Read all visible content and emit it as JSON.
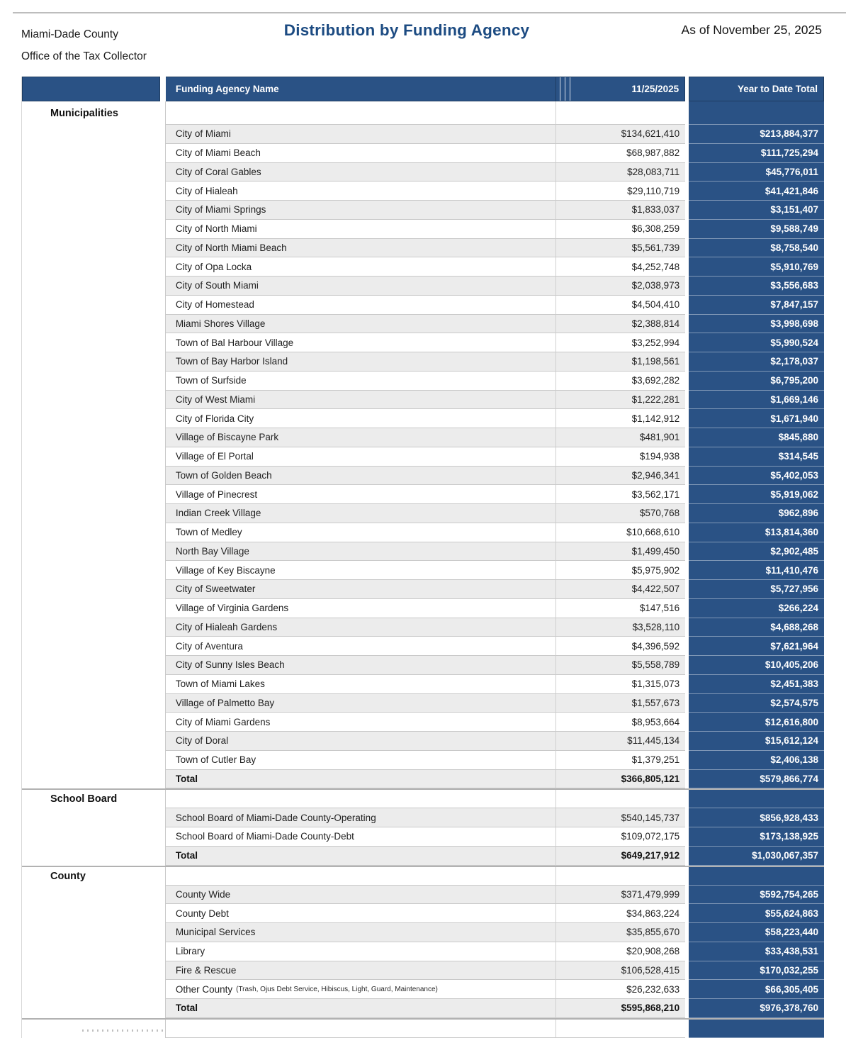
{
  "page": {
    "org_line1": "Miami-Dade County",
    "org_line2": "Office of the Tax Collector",
    "title": "Distribution by Funding Agency",
    "as_of": "As of November 25, 2025"
  },
  "colors": {
    "header_blue": "#2A5285",
    "ytd_blue": "#2A5285",
    "title_blue": "#1C4B82",
    "stripe": "#ECECEC"
  },
  "table": {
    "columns": {
      "agency": "Funding Agency Name",
      "date": "11/25/2025",
      "ytd": "Year to Date Total"
    },
    "sections": [
      {
        "label": "Municipalities",
        "rows": [
          {
            "name": "City of Miami",
            "amount": "$134,621,410",
            "ytd": "$213,884,377"
          },
          {
            "name": "City of Miami Beach",
            "amount": "$68,987,882",
            "ytd": "$111,725,294"
          },
          {
            "name": "City of Coral Gables",
            "amount": "$28,083,711",
            "ytd": "$45,776,011"
          },
          {
            "name": "City of Hialeah",
            "amount": "$29,110,719",
            "ytd": "$41,421,846"
          },
          {
            "name": "City of Miami Springs",
            "amount": "$1,833,037",
            "ytd": "$3,151,407"
          },
          {
            "name": "City of North Miami",
            "amount": "$6,308,259",
            "ytd": "$9,588,749"
          },
          {
            "name": "City of North Miami Beach",
            "amount": "$5,561,739",
            "ytd": "$8,758,540"
          },
          {
            "name": "City of Opa Locka",
            "amount": "$4,252,748",
            "ytd": "$5,910,769"
          },
          {
            "name": "City of South Miami",
            "amount": "$2,038,973",
            "ytd": "$3,556,683"
          },
          {
            "name": "City of Homestead",
            "amount": "$4,504,410",
            "ytd": "$7,847,157"
          },
          {
            "name": "Miami Shores Village",
            "amount": "$2,388,814",
            "ytd": "$3,998,698"
          },
          {
            "name": "Town of Bal Harbour Village",
            "amount": "$3,252,994",
            "ytd": "$5,990,524"
          },
          {
            "name": "Town of Bay Harbor Island",
            "amount": "$1,198,561",
            "ytd": "$2,178,037"
          },
          {
            "name": "Town of Surfside",
            "amount": "$3,692,282",
            "ytd": "$6,795,200"
          },
          {
            "name": "City of West Miami",
            "amount": "$1,222,281",
            "ytd": "$1,669,146"
          },
          {
            "name": "City of Florida City",
            "amount": "$1,142,912",
            "ytd": "$1,671,940"
          },
          {
            "name": "Village of Biscayne Park",
            "amount": "$481,901",
            "ytd": "$845,880"
          },
          {
            "name": "Village of El Portal",
            "amount": "$194,938",
            "ytd": "$314,545"
          },
          {
            "name": "Town of Golden Beach",
            "amount": "$2,946,341",
            "ytd": "$5,402,053"
          },
          {
            "name": "Village of Pinecrest",
            "amount": "$3,562,171",
            "ytd": "$5,919,062"
          },
          {
            "name": "Indian Creek Village",
            "amount": "$570,768",
            "ytd": "$962,896"
          },
          {
            "name": "Town of Medley",
            "amount": "$10,668,610",
            "ytd": "$13,814,360"
          },
          {
            "name": "North Bay Village",
            "amount": "$1,499,450",
            "ytd": "$2,902,485"
          },
          {
            "name": "Village of Key Biscayne",
            "amount": "$5,975,902",
            "ytd": "$11,410,476"
          },
          {
            "name": "City of Sweetwater",
            "amount": "$4,422,507",
            "ytd": "$5,727,956"
          },
          {
            "name": "Village of Virginia Gardens",
            "amount": "$147,516",
            "ytd": "$266,224"
          },
          {
            "name": "City of Hialeah Gardens",
            "amount": "$3,528,110",
            "ytd": "$4,688,268"
          },
          {
            "name": "City of Aventura",
            "amount": "$4,396,592",
            "ytd": "$7,621,964"
          },
          {
            "name": "City of Sunny Isles Beach",
            "amount": "$5,558,789",
            "ytd": "$10,405,206"
          },
          {
            "name": "Town of Miami Lakes",
            "amount": "$1,315,073",
            "ytd": "$2,451,383"
          },
          {
            "name": "Village of Palmetto Bay",
            "amount": "$1,557,673",
            "ytd": "$2,574,575"
          },
          {
            "name": "City of Miami Gardens",
            "amount": "$8,953,664",
            "ytd": "$12,616,800"
          },
          {
            "name": "City of Doral",
            "amount": "$11,445,134",
            "ytd": "$15,612,124"
          },
          {
            "name": "Town of Cutler Bay",
            "amount": "$1,379,251",
            "ytd": "$2,406,138"
          },
          {
            "name": "Total",
            "amount": "$366,805,121",
            "ytd": "$579,866,774",
            "total": true
          }
        ]
      },
      {
        "label": "School Board",
        "rows": [
          {
            "name": "School Board of Miami-Dade County-Operating",
            "amount": "$540,145,737",
            "ytd": "$856,928,433"
          },
          {
            "name": "School Board of Miami-Dade County-Debt",
            "amount": "$109,072,175",
            "ytd": "$173,138,925"
          },
          {
            "name": "Total",
            "amount": "$649,217,912",
            "ytd": "$1,030,067,357",
            "total": true
          }
        ]
      },
      {
        "label": "County",
        "rows": [
          {
            "name": "County Wide",
            "amount": "$371,479,999",
            "ytd": "$592,754,265"
          },
          {
            "name": "County Debt",
            "amount": "$34,863,224",
            "ytd": "$55,624,863"
          },
          {
            "name": "Municipal Services",
            "amount": "$35,855,670",
            "ytd": "$58,223,440"
          },
          {
            "name": "Library",
            "amount": "$20,908,268",
            "ytd": "$33,438,531"
          },
          {
            "name": "Fire & Rescue",
            "amount": "$106,528,415",
            "ytd": "$170,032,255"
          },
          {
            "name": "Other County",
            "note": "(Trash, Ojus Debt Service, Hibiscus, Light, Guard, Maintenance)",
            "amount": "$26,232,633",
            "ytd": "$66,305,405"
          },
          {
            "name": "Total",
            "amount": "$595,868,210",
            "ytd": "$976,378,760",
            "total": true
          }
        ]
      }
    ]
  }
}
